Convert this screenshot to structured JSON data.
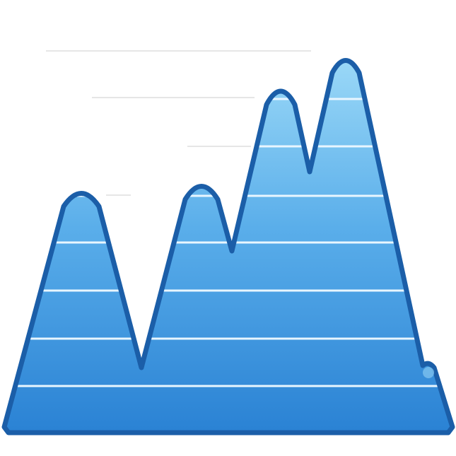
{
  "icon": {
    "name": "area-chart-icon",
    "colors": {
      "fill_top": "#9ad8f7",
      "fill_bottom": "#2a82d4",
      "outline": "#1b5ea8",
      "stripe": "#e8f6ff",
      "background_guides": "#e6e6e6"
    }
  }
}
